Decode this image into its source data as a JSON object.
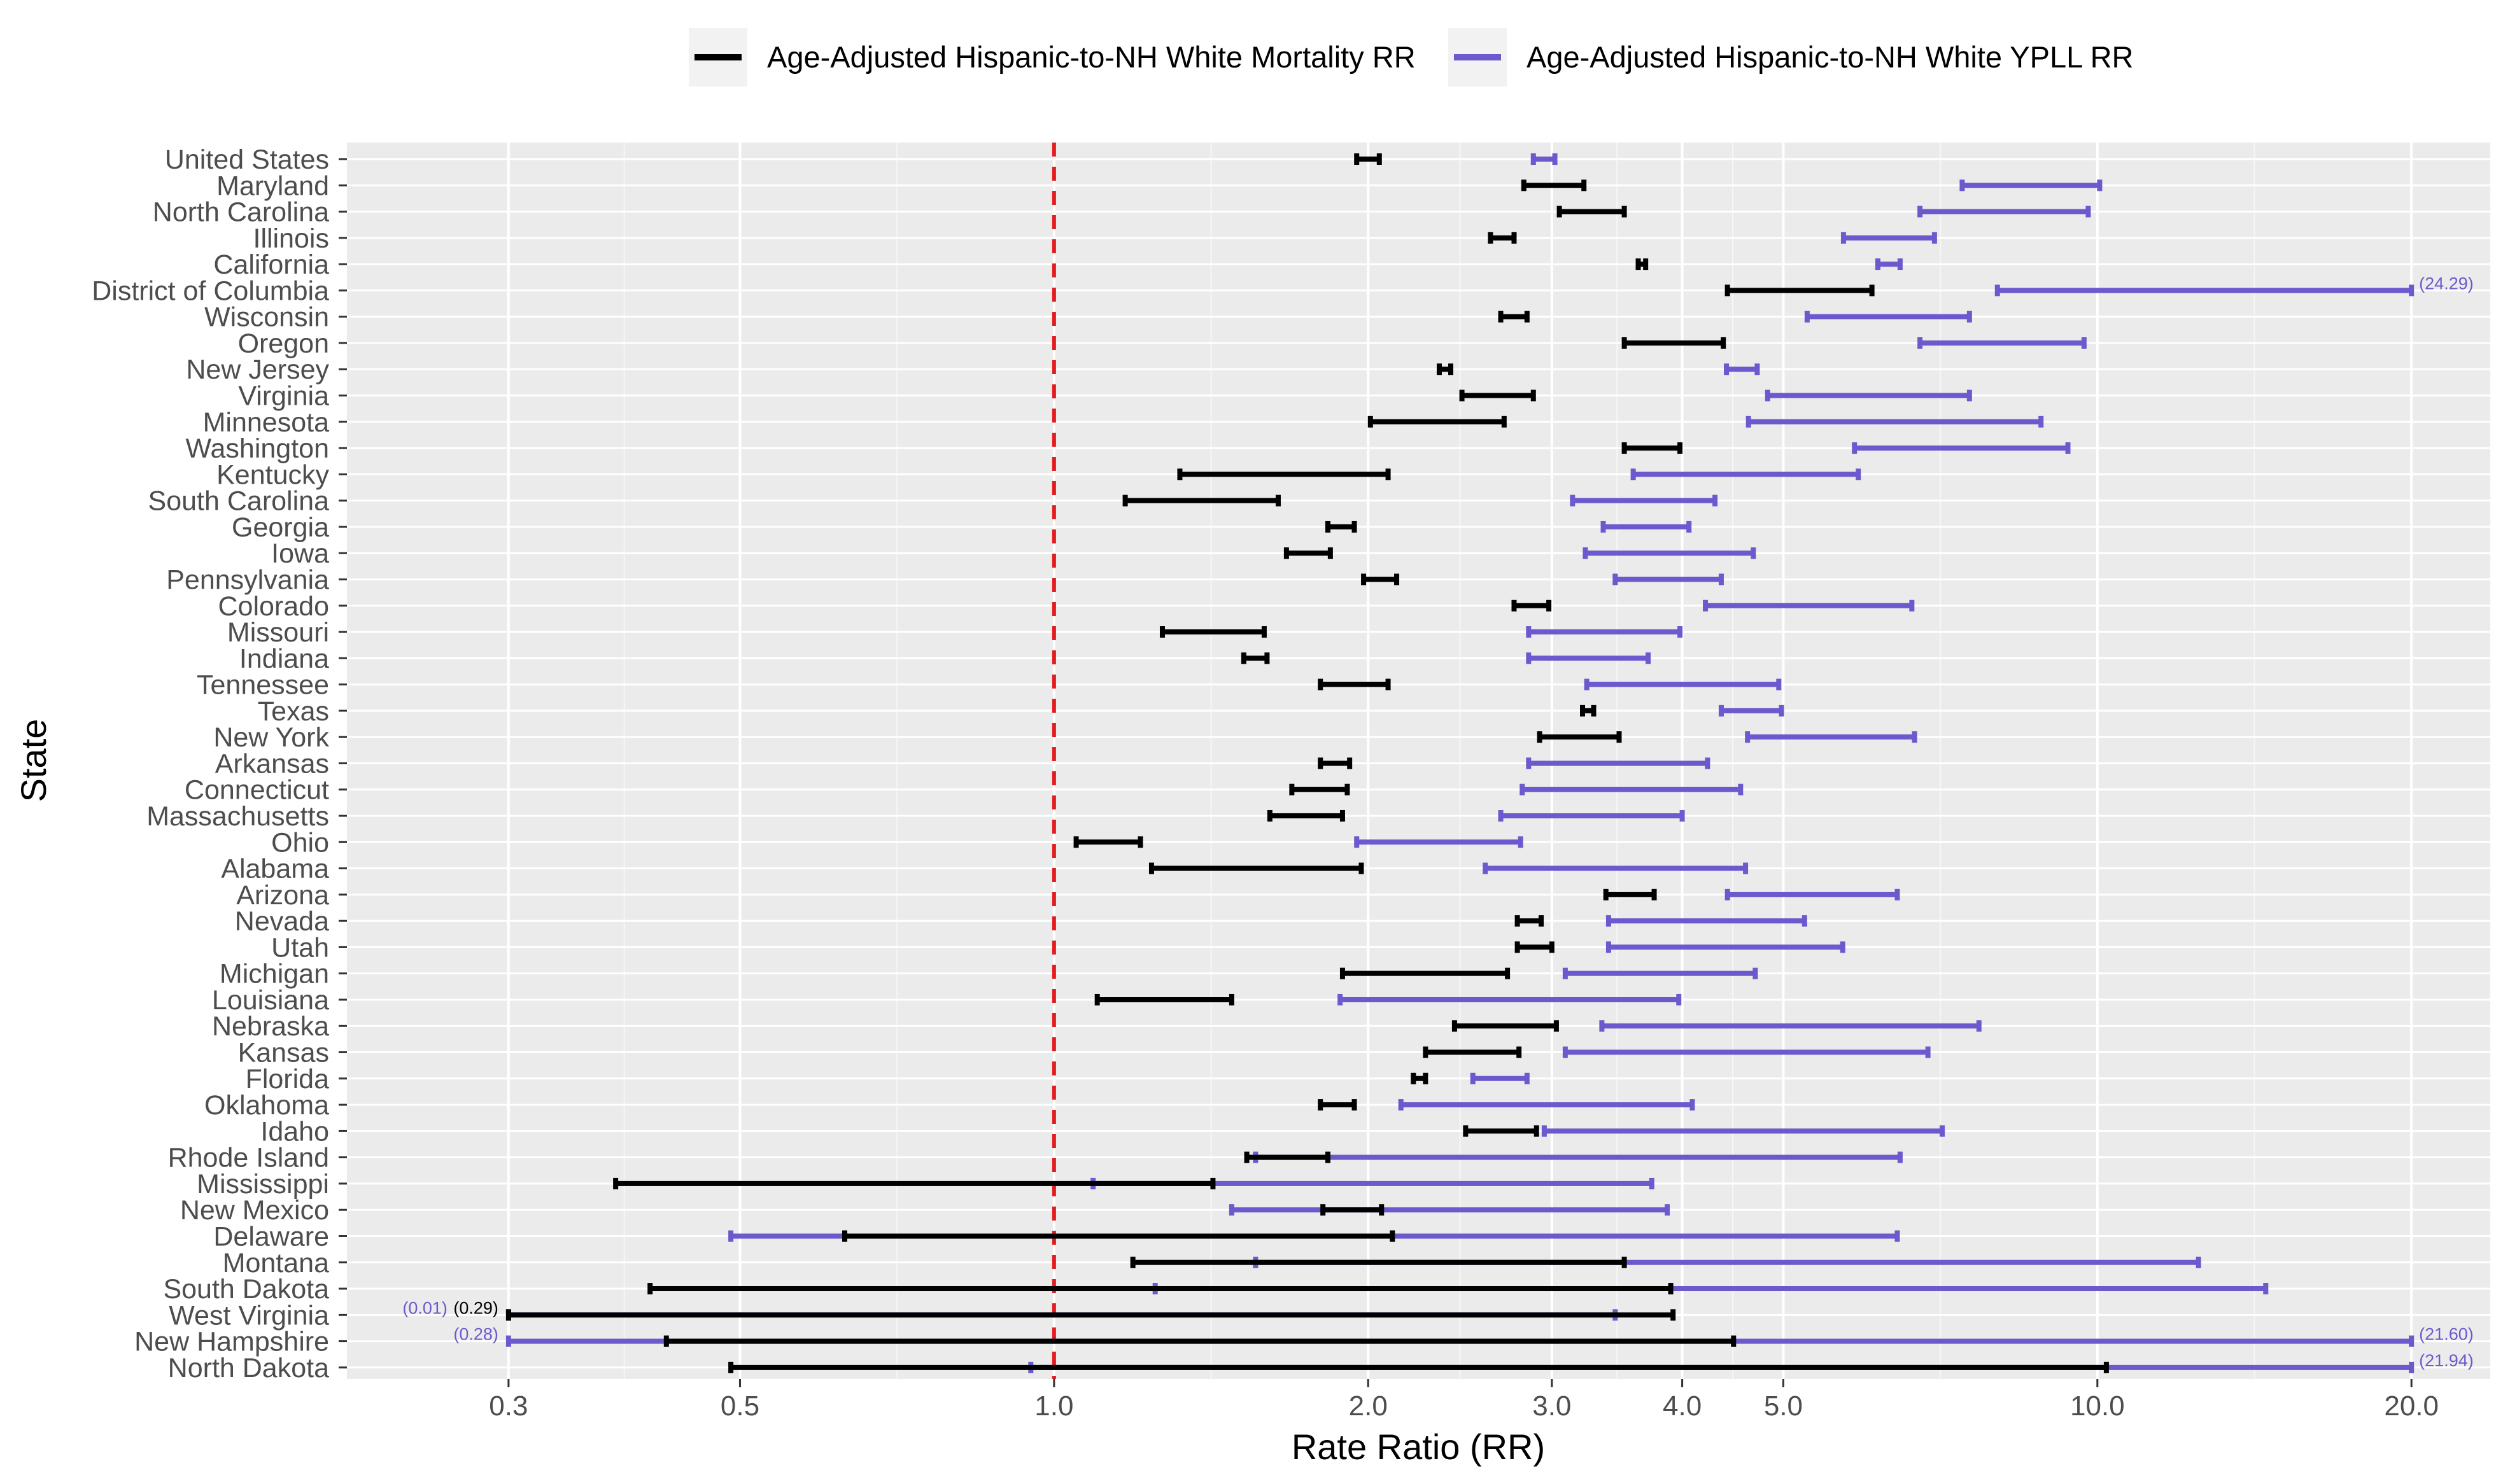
{
  "chart_data": {
    "type": "interval",
    "title": "",
    "xlabel": "Rate Ratio (RR)",
    "ylabel": "State",
    "x_scale": "log",
    "xlim": [
      0.21,
      23.8
    ],
    "x_ticks": [
      0.3,
      0.5,
      1.0,
      2.0,
      3.0,
      4.0,
      5.0,
      10.0,
      20.0
    ],
    "x_tick_labels": [
      "0.3",
      "0.5",
      "1.0",
      "2.0",
      "3.0",
      "4.0",
      "5.0",
      "10.0",
      "20.0"
    ],
    "reference_line": {
      "x": 1.0,
      "style": "dashed",
      "color": "#e41a1c"
    },
    "legend": {
      "position": "top",
      "entries": [
        {
          "label": "Age-Adjusted Hispanic-to-NH White Mortality RR",
          "color": "#000000"
        },
        {
          "label": "Age-Adjusted Hispanic-to-NH White YPLL RR",
          "color": "#6a5acd"
        }
      ]
    },
    "categories": [
      "United States",
      "Maryland",
      "North Carolina",
      "Illinois",
      "California",
      "District of Columbia",
      "Wisconsin",
      "Oregon",
      "New Jersey",
      "Virginia",
      "Minnesota",
      "Washington",
      "Kentucky",
      "South Carolina",
      "Georgia",
      "Iowa",
      "Pennsylvania",
      "Colorado",
      "Missouri",
      "Indiana",
      "Tennessee",
      "Texas",
      "New York",
      "Arkansas",
      "Connecticut",
      "Massachusetts",
      "Ohio",
      "Alabama",
      "Arizona",
      "Nevada",
      "Utah",
      "Michigan",
      "Louisiana",
      "Nebraska",
      "Kansas",
      "Florida",
      "Oklahoma",
      "Idaho",
      "Rhode Island",
      "Mississippi",
      "New Mexico",
      "Delaware",
      "Montana",
      "South Dakota",
      "West Virginia",
      "New Hampshire",
      "North Dakota"
    ],
    "series": [
      {
        "name": "Age-Adjusted Hispanic-to-NH White Mortality RR",
        "color": "#000000",
        "intervals": [
          [
            1.95,
            2.05
          ],
          [
            2.82,
            3.22
          ],
          [
            3.05,
            3.52
          ],
          [
            2.62,
            2.76
          ],
          [
            3.63,
            3.69
          ],
          [
            4.42,
            6.08
          ],
          [
            2.68,
            2.84
          ],
          [
            3.52,
            4.38
          ],
          [
            2.34,
            2.4
          ],
          [
            2.46,
            2.88
          ],
          [
            2.01,
            2.7
          ],
          [
            3.52,
            3.98
          ],
          [
            1.32,
            2.09
          ],
          [
            1.17,
            1.64
          ],
          [
            1.83,
            1.94
          ],
          [
            1.67,
            1.84
          ],
          [
            1.98,
            2.13
          ],
          [
            2.76,
            2.98
          ],
          [
            1.27,
            1.59
          ],
          [
            1.52,
            1.6
          ],
          [
            1.8,
            2.09
          ],
          [
            3.21,
            3.29
          ],
          [
            2.92,
            3.48
          ],
          [
            1.8,
            1.92
          ],
          [
            1.69,
            1.91
          ],
          [
            1.61,
            1.89
          ],
          [
            1.05,
            1.21
          ],
          [
            1.24,
            1.97
          ],
          [
            3.38,
            3.76
          ],
          [
            2.78,
            2.93
          ],
          [
            2.78,
            3.0
          ],
          [
            1.89,
            2.72
          ],
          [
            1.1,
            1.48
          ],
          [
            2.42,
            3.03
          ],
          [
            2.27,
            2.79
          ],
          [
            2.21,
            2.27
          ],
          [
            1.8,
            1.94
          ],
          [
            2.48,
            2.9
          ],
          [
            1.53,
            1.83
          ],
          [
            0.38,
            1.42
          ],
          [
            1.81,
            2.06
          ],
          [
            0.63,
            2.11
          ],
          [
            1.19,
            3.52
          ],
          [
            0.41,
            3.9
          ],
          [
            0.3,
            3.92
          ],
          [
            0.425,
            4.48
          ],
          [
            0.49,
            10.2
          ]
        ],
        "annotations": [
          {
            "state": "West Virginia",
            "text": "(0.29)",
            "side": "left"
          }
        ]
      },
      {
        "name": "Age-Adjusted Hispanic-to-NH White YPLL RR",
        "color": "#6a5acd",
        "intervals": [
          [
            2.88,
            3.02
          ],
          [
            7.42,
            10.05
          ],
          [
            6.76,
            9.8
          ],
          [
            5.71,
            6.98
          ],
          [
            6.16,
            6.47
          ],
          [
            8.02,
            20.0
          ],
          [
            5.27,
            7.54
          ],
          [
            6.76,
            9.71
          ],
          [
            4.41,
            4.72
          ],
          [
            4.83,
            7.54
          ],
          [
            4.63,
            8.83
          ],
          [
            5.85,
            9.37
          ],
          [
            3.59,
            5.9
          ],
          [
            3.14,
            4.3
          ],
          [
            3.36,
            4.06
          ],
          [
            3.23,
            4.68
          ],
          [
            3.45,
            4.36
          ],
          [
            4.21,
            6.64
          ],
          [
            2.85,
            3.98
          ],
          [
            2.85,
            3.71
          ],
          [
            3.24,
            4.95
          ],
          [
            4.36,
            4.98
          ],
          [
            4.62,
            6.68
          ],
          [
            2.85,
            4.23
          ],
          [
            2.81,
            4.55
          ],
          [
            2.68,
            4.0
          ],
          [
            1.95,
            2.8
          ],
          [
            2.59,
            4.6
          ],
          [
            4.42,
            6.43
          ],
          [
            3.4,
            5.24
          ],
          [
            3.4,
            5.7
          ],
          [
            3.09,
            4.7
          ],
          [
            1.88,
            3.97
          ],
          [
            3.35,
            7.7
          ],
          [
            3.09,
            6.88
          ],
          [
            2.52,
            2.84
          ],
          [
            2.15,
            4.09
          ],
          [
            2.95,
            7.1
          ],
          [
            1.56,
            6.47
          ],
          [
            1.09,
            3.74
          ],
          [
            1.48,
            3.87
          ],
          [
            0.49,
            6.43
          ],
          [
            1.56,
            12.5
          ],
          [
            1.25,
            14.5
          ],
          [
            0.3,
            3.45
          ],
          [
            0.3,
            20.0
          ],
          [
            0.95,
            20.0
          ]
        ],
        "annotations": [
          {
            "state": "District of Columbia",
            "text": "(24.29)",
            "side": "right"
          },
          {
            "state": "West Virginia",
            "text": "(0.01)",
            "side": "left"
          },
          {
            "state": "New Hampshire",
            "text": "(0.28)",
            "side": "left"
          },
          {
            "state": "New Hampshire",
            "text": "(21.60)",
            "side": "right"
          },
          {
            "state": "North Dakota",
            "text": "(21.94)",
            "side": "right"
          }
        ]
      }
    ]
  }
}
